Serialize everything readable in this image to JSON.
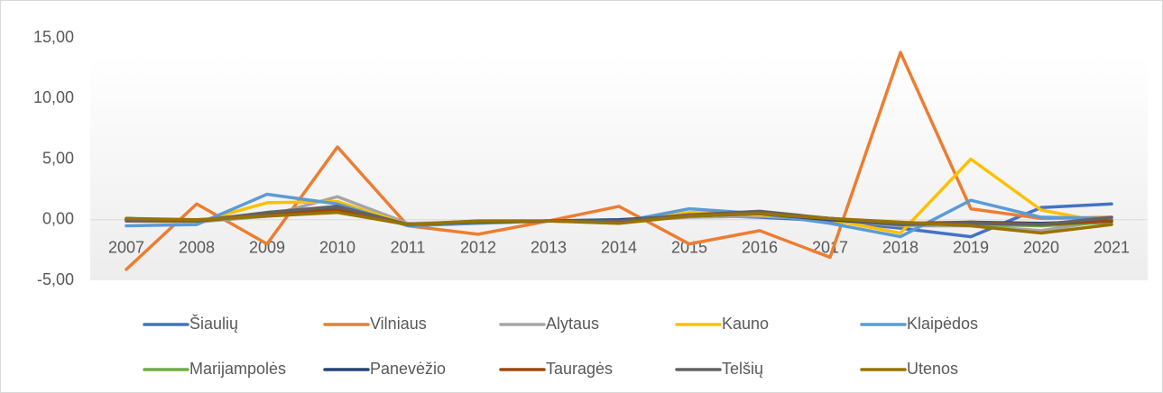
{
  "chart_data": {
    "type": "line",
    "categories": [
      "2007",
      "2008",
      "2009",
      "2010",
      "2011",
      "2012",
      "2013",
      "2014",
      "2015",
      "2016",
      "2017",
      "2018",
      "2019",
      "2020",
      "2021"
    ],
    "ylim": [
      -5,
      15
    ],
    "yticks": [
      {
        "value": -5,
        "label": "-5,00"
      },
      {
        "value": 0,
        "label": "0,00"
      },
      {
        "value": 5,
        "label": "5,00"
      },
      {
        "value": 10,
        "label": "10,00"
      },
      {
        "value": 15,
        "label": "15,00"
      }
    ],
    "legend": "bottom",
    "series": [
      {
        "name": "Šiaulių",
        "color": "#4472c4",
        "values": [
          0.0,
          -0.1,
          0.4,
          1.0,
          -0.4,
          -0.2,
          -0.1,
          -0.1,
          0.4,
          0.2,
          -0.1,
          -0.7,
          -1.4,
          1.0,
          1.3
        ]
      },
      {
        "name": "Vilniaus",
        "color": "#ed7d31",
        "values": [
          -4.1,
          1.3,
          -2.0,
          6.0,
          -0.5,
          -1.2,
          -0.1,
          1.1,
          -2.0,
          -0.9,
          -3.1,
          13.8,
          0.9,
          0.1,
          0.2
        ]
      },
      {
        "name": "Alytaus",
        "color": "#a5a5a5",
        "values": [
          0.0,
          -0.2,
          0.3,
          1.9,
          -0.3,
          -0.2,
          -0.1,
          -0.1,
          0.2,
          0.3,
          0.0,
          -0.5,
          -0.5,
          -0.9,
          0.0
        ]
      },
      {
        "name": "Kauno",
        "color": "#ffc000",
        "values": [
          -0.1,
          -0.2,
          1.4,
          1.5,
          -0.4,
          -0.2,
          -0.1,
          -0.3,
          0.6,
          0.4,
          0.0,
          -1.1,
          5.0,
          0.8,
          -0.3
        ]
      },
      {
        "name": "Klaipėdos",
        "color": "#5b9bd5",
        "values": [
          -0.5,
          -0.4,
          2.1,
          1.3,
          -0.5,
          -0.3,
          -0.1,
          -0.2,
          0.9,
          0.5,
          -0.3,
          -1.4,
          1.6,
          0.2,
          0.1
        ]
      },
      {
        "name": "Marijampolės",
        "color": "#70ad47",
        "values": [
          0.1,
          -0.1,
          0.3,
          0.7,
          -0.4,
          -0.1,
          -0.1,
          -0.2,
          0.4,
          0.5,
          0.1,
          -0.3,
          -0.4,
          -0.5,
          -0.2
        ]
      },
      {
        "name": "Panevėžio",
        "color": "#264478",
        "values": [
          0.0,
          -0.1,
          0.5,
          1.1,
          -0.4,
          -0.2,
          -0.1,
          0.0,
          0.3,
          0.5,
          0.0,
          -0.4,
          -0.2,
          -0.3,
          -0.1
        ]
      },
      {
        "name": "Tauragės",
        "color": "#9e480e",
        "values": [
          0.1,
          -0.1,
          0.4,
          0.8,
          -0.4,
          -0.2,
          -0.1,
          -0.1,
          0.4,
          0.5,
          0.1,
          -0.3,
          -0.2,
          -0.4,
          -0.1
        ]
      },
      {
        "name": "Telšių",
        "color": "#636363",
        "values": [
          -0.1,
          -0.1,
          0.6,
          1.1,
          -0.4,
          -0.2,
          -0.1,
          -0.1,
          0.4,
          0.7,
          0.1,
          -0.4,
          -0.3,
          -0.4,
          0.2
        ]
      },
      {
        "name": "Utenos",
        "color": "#997300",
        "values": [
          0.1,
          0.0,
          0.3,
          0.6,
          -0.4,
          -0.1,
          -0.1,
          -0.3,
          0.3,
          0.5,
          0.1,
          -0.2,
          -0.5,
          -1.1,
          -0.4
        ]
      }
    ]
  }
}
